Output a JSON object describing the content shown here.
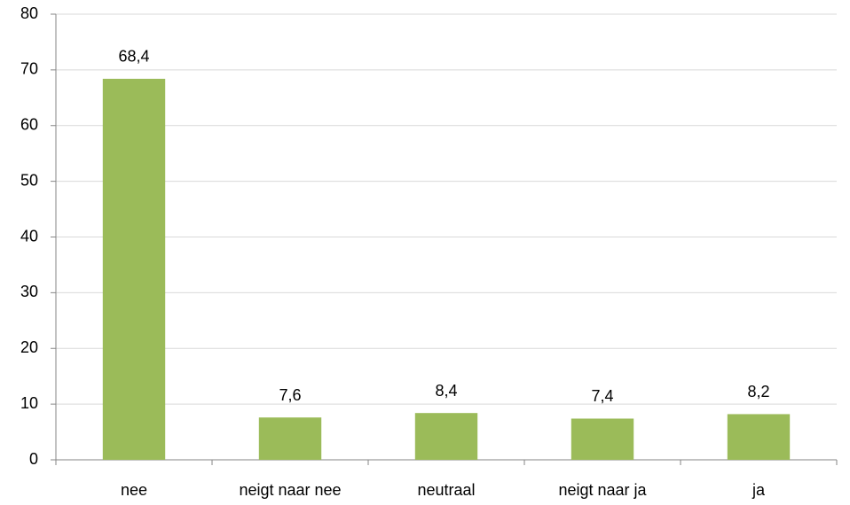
{
  "chart_data": {
    "type": "bar",
    "categories": [
      "nee",
      "neigt naar nee",
      "neutraal",
      "neigt naar ja",
      "ja"
    ],
    "values": [
      68.4,
      7.6,
      8.4,
      7.4,
      8.2
    ],
    "value_labels": [
      "68,4",
      "7,6",
      "8,4",
      "7,4",
      "8,2"
    ],
    "color": "#9bbb59",
    "ylim": [
      0,
      80
    ],
    "yticks": [
      0,
      10,
      20,
      30,
      40,
      50,
      60,
      70,
      80
    ],
    "grid": true
  }
}
